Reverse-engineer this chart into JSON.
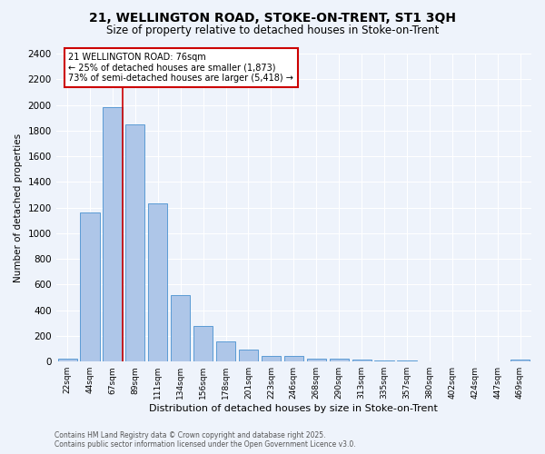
{
  "title_line1": "21, WELLINGTON ROAD, STOKE-ON-TRENT, ST1 3QH",
  "title_line2": "Size of property relative to detached houses in Stoke-on-Trent",
  "xlabel": "Distribution of detached houses by size in Stoke-on-Trent",
  "ylabel": "Number of detached properties",
  "categories": [
    "22sqm",
    "44sqm",
    "67sqm",
    "89sqm",
    "111sqm",
    "134sqm",
    "156sqm",
    "178sqm",
    "201sqm",
    "223sqm",
    "246sqm",
    "268sqm",
    "290sqm",
    "313sqm",
    "335sqm",
    "357sqm",
    "380sqm",
    "402sqm",
    "424sqm",
    "447sqm",
    "469sqm"
  ],
  "values": [
    25,
    1160,
    1980,
    1850,
    1230,
    520,
    280,
    155,
    90,
    45,
    45,
    20,
    20,
    15,
    10,
    8,
    5,
    5,
    3,
    3,
    15
  ],
  "bar_color": "#aec6e8",
  "bar_edge_color": "#5b9bd5",
  "background_color": "#eef3fb",
  "grid_color": "#ffffff",
  "red_line_index": 2,
  "annotation_title": "21 WELLINGTON ROAD: 76sqm",
  "annotation_line1": "← 25% of detached houses are smaller (1,873)",
  "annotation_line2": "73% of semi-detached houses are larger (5,418) →",
  "annotation_box_color": "#ffffff",
  "annotation_box_edge": "#cc0000",
  "red_line_color": "#cc0000",
  "footer_line1": "Contains HM Land Registry data © Crown copyright and database right 2025.",
  "footer_line2": "Contains public sector information licensed under the Open Government Licence v3.0.",
  "ylim": [
    0,
    2400
  ],
  "yticks": [
    0,
    200,
    400,
    600,
    800,
    1000,
    1200,
    1400,
    1600,
    1800,
    2000,
    2200,
    2400
  ]
}
